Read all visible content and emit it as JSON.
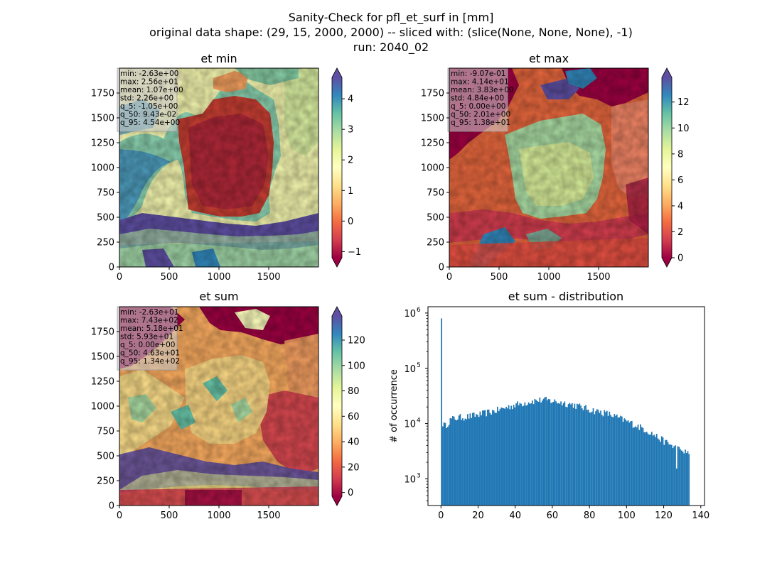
{
  "figure": {
    "suptitle_lines": [
      "Sanity-Check for pfl_et_surf in [mm]",
      "original data shape: (29, 15, 2000, 2000) -- sliced with: (slice(None, None, None), -1)",
      "run: 2040_02"
    ]
  },
  "chart_data": [
    {
      "type": "heatmap",
      "title": "et min",
      "colormap": "Spectral",
      "xlim": [
        0,
        2000
      ],
      "ylim": [
        0,
        2000
      ],
      "xticks": [
        0,
        500,
        1000,
        1500
      ],
      "yticks": [
        0,
        250,
        500,
        750,
        1000,
        1250,
        1500,
        1750
      ],
      "colorbar": {
        "range": [
          -1.2,
          4.7
        ],
        "ticks": [
          -1,
          0,
          1,
          2,
          3,
          4
        ],
        "extend": "both"
      },
      "stats": [
        "min: -2.63e+00",
        "max: 2.56e+01",
        "mean: 1.07e+00",
        "std: 2.26e+00",
        "q_5: -1.05e+00",
        "q_50: 9.43e-02",
        "q_95: 4.54e+00"
      ]
    },
    {
      "type": "heatmap",
      "title": "et max",
      "colormap": "Spectral",
      "xlim": [
        0,
        2000
      ],
      "ylim": [
        0,
        2000
      ],
      "xticks": [
        0,
        500,
        1000,
        1500
      ],
      "yticks": [
        0,
        250,
        500,
        750,
        1000,
        1250,
        1500,
        1750
      ],
      "colorbar": {
        "range": [
          0,
          13.9
        ],
        "ticks": [
          0,
          2,
          4,
          6,
          8,
          10,
          12
        ],
        "extend": "both"
      },
      "stats": [
        "min: -9.07e-01",
        "max: 4.14e+01",
        "mean: 3.83e+00",
        "std: 4.84e+00",
        "q_5: 0.00e+00",
        "q_50: 2.01e+00",
        "q_95: 1.38e+01"
      ]
    },
    {
      "type": "heatmap",
      "title": "et sum",
      "colormap": "Spectral",
      "xlim": [
        0,
        2000
      ],
      "ylim": [
        0,
        2000
      ],
      "xticks": [
        0,
        500,
        1000,
        1500
      ],
      "yticks": [
        0,
        250,
        500,
        750,
        1000,
        1250,
        1500,
        1750
      ],
      "colorbar": {
        "range": [
          -3,
          139
        ],
        "ticks": [
          0,
          20,
          40,
          60,
          80,
          100,
          120
        ],
        "extend": "both"
      },
      "stats": [
        "min: -2.63e+01",
        "max: 7.43e+02",
        "mean: 5.18e+01",
        "std: 5.93e+01",
        "q_5: 0.00e+00",
        "q_50: 4.63e+01",
        "q_95: 1.34e+02"
      ]
    },
    {
      "type": "bar",
      "title": "et sum - distribution",
      "ylabel": "# of occurrence",
      "yscale": "log",
      "xlim": [
        -7,
        142
      ],
      "ylim": [
        330,
        1300000
      ],
      "xticks": [
        0,
        20,
        40,
        60,
        80,
        100,
        120,
        140
      ],
      "yticks": [
        1000,
        10000,
        100000,
        1000000
      ],
      "ytick_labels": [
        [
          "10",
          "3"
        ],
        [
          "10",
          "4"
        ],
        [
          "10",
          "5"
        ],
        [
          "10",
          "6"
        ]
      ],
      "color": "#1f77b4",
      "bin_width": 0.67,
      "bins": [
        0,
        134
      ],
      "spike": {
        "x": 0,
        "value": 800000
      },
      "profile": [
        [
          0.3,
          10500
        ],
        [
          2,
          9000
        ],
        [
          5,
          12000
        ],
        [
          10,
          13000
        ],
        [
          15,
          13500
        ],
        [
          20,
          14500
        ],
        [
          30,
          17500
        ],
        [
          40,
          22000
        ],
        [
          50,
          26000
        ],
        [
          55,
          27000
        ],
        [
          60,
          25500
        ],
        [
          70,
          22500
        ],
        [
          80,
          18000
        ],
        [
          90,
          15000
        ],
        [
          100,
          11000
        ],
        [
          110,
          7800
        ],
        [
          120,
          4800
        ],
        [
          128,
          3400
        ],
        [
          134,
          2700
        ]
      ]
    }
  ]
}
